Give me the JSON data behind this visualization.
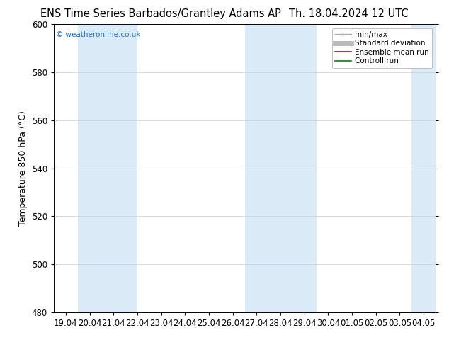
{
  "title_left": "ENS Time Series Barbados/Grantley Adams AP",
  "title_right": "Th. 18.04.2024 12 UTC",
  "ylabel": "Temperature 850 hPa (°C)",
  "ylim": [
    480,
    600
  ],
  "yticks": [
    480,
    500,
    520,
    540,
    560,
    580,
    600
  ],
  "x_tick_labels": [
    "19.04",
    "20.04",
    "21.04",
    "22.04",
    "23.04",
    "24.04",
    "25.04",
    "26.04",
    "27.04",
    "28.04",
    "29.04",
    "30.04",
    "01.05",
    "02.05",
    "03.05",
    "04.05"
  ],
  "watermark": "© weatheronline.co.uk",
  "watermark_color": "#1a6fcc",
  "shade_color": "#daeaf6",
  "legend_labels": [
    "min/max",
    "Standard deviation",
    "Ensemble mean run",
    "Controll run"
  ],
  "legend_colors": [
    "#aaaaaa",
    "#aaaaaa",
    "#cc0000",
    "#008800"
  ],
  "background_color": "#ffffff",
  "plot_bg_color": "#ffffff",
  "title_fontsize": 10.5,
  "label_fontsize": 9,
  "tick_fontsize": 8.5
}
